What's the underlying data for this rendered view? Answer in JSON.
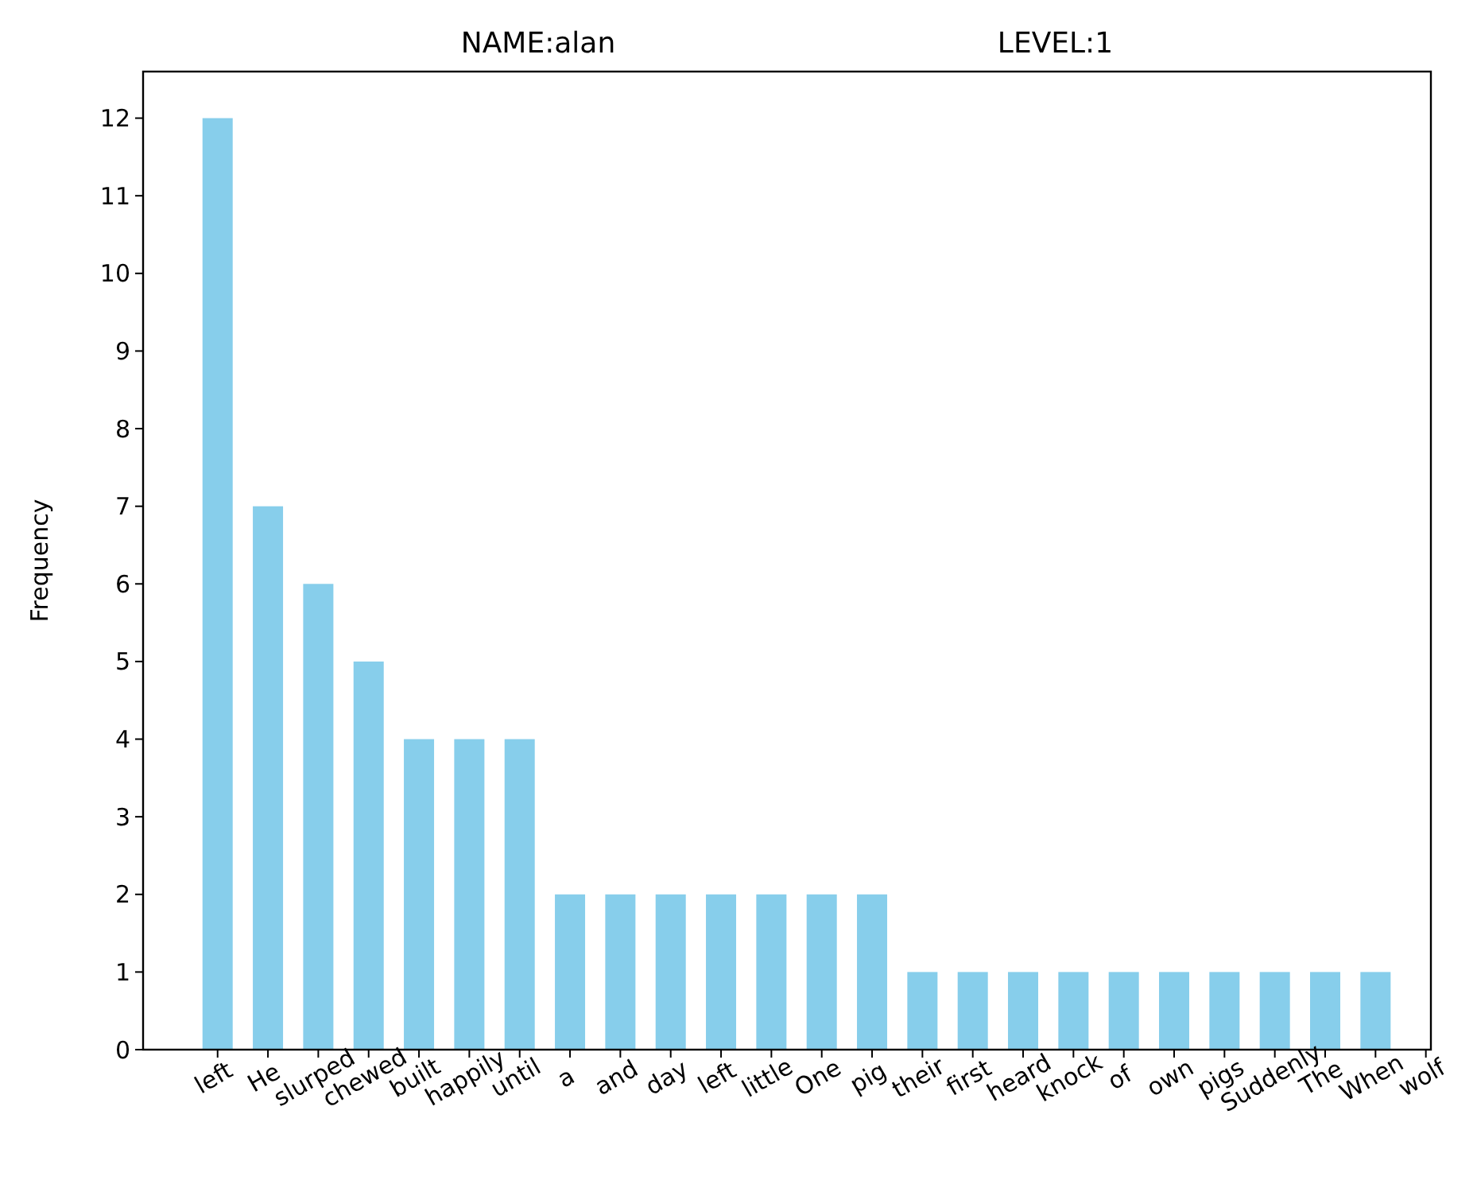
{
  "chart_data": {
    "type": "bar",
    "title": "NAME:alan                                          LEVEL:1",
    "ylabel": "Frequency",
    "categories": [
      "left",
      "He",
      "slurped",
      "chewed",
      "built",
      "happily",
      "until",
      "a",
      "and",
      "day",
      "left",
      "little",
      "One",
      "pig",
      "their",
      "first",
      "heard",
      "knock",
      "of",
      "own",
      "pigs",
      "Suddenly",
      "The",
      "When",
      "wolf"
    ],
    "values": [
      12,
      7,
      6,
      5,
      4,
      4,
      4,
      2,
      2,
      2,
      2,
      2,
      2,
      2,
      1,
      1,
      1,
      1,
      1,
      1,
      1,
      1,
      1,
      1,
      0
    ],
    "color": "#87ceeb",
    "ylim": [
      0,
      12.6
    ],
    "yticks": [
      0,
      1,
      2,
      3,
      4,
      5,
      6,
      7,
      8,
      9,
      10,
      11,
      12
    ],
    "grid": false
  }
}
